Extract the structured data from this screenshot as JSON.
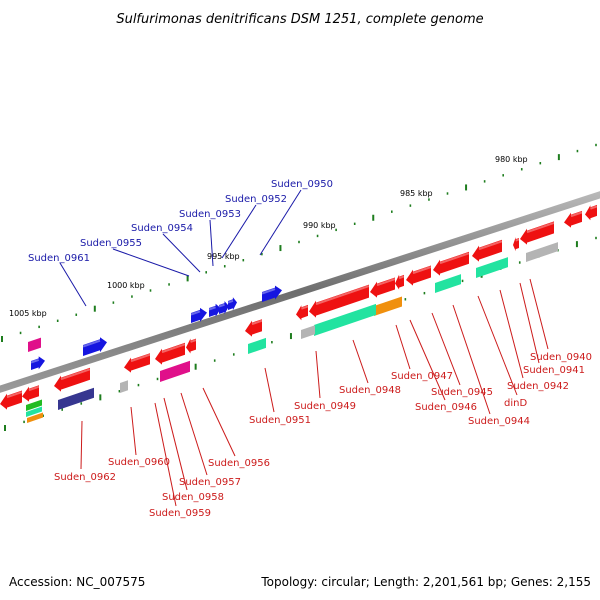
{
  "title": "Sulfurimonas denitrificans DSM 1251, complete genome",
  "footer": {
    "accession": "Accession: NC_007575",
    "summary": "Topology: circular; Length: 2,201,561 bp; Genes: 2,155"
  },
  "colors": {
    "backbone": "#7a7a7a",
    "tick": "#1e7d1e",
    "label_forward": "#1a1aa8",
    "label_reverse": "#cc1b1b",
    "gene_red": "#ee1111",
    "gene_blue": "#1515e0",
    "gene_magenta": "#e0108a",
    "gene_teal": "#22e3a0",
    "gene_orange": "#f0900e",
    "gene_navy": "#363690",
    "gene_gray": "#b4b4b4",
    "gene_green": "#22bb22"
  },
  "scale_labels": [
    {
      "id": "kbp-980",
      "text": "980 kbp"
    },
    {
      "id": "kbp-985",
      "text": "985 kbp"
    },
    {
      "id": "kbp-990",
      "text": "990 kbp"
    },
    {
      "id": "kbp-995",
      "text": "995 kbp"
    },
    {
      "id": "kbp-1000",
      "text": "1000 kbp"
    },
    {
      "id": "kbp-1005",
      "text": "1005 kbp"
    }
  ],
  "forward_labels": [
    {
      "id": "suden-0950",
      "text": "Suden_0950"
    },
    {
      "id": "suden-0952",
      "text": "Suden_0952"
    },
    {
      "id": "suden-0953",
      "text": "Suden_0953"
    },
    {
      "id": "suden-0954",
      "text": "Suden_0954"
    },
    {
      "id": "suden-0955",
      "text": "Suden_0955"
    },
    {
      "id": "suden-0961",
      "text": "Suden_0961"
    }
  ],
  "reverse_labels": [
    {
      "id": "suden-0940",
      "text": "Suden_0940"
    },
    {
      "id": "suden-0941",
      "text": "Suden_0941"
    },
    {
      "id": "suden-0942",
      "text": "Suden_0942"
    },
    {
      "id": "dind",
      "text": "dinD"
    },
    {
      "id": "suden-0944",
      "text": "Suden_0944"
    },
    {
      "id": "suden-0945",
      "text": "Suden_0945"
    },
    {
      "id": "suden-0946",
      "text": "Suden_0946"
    },
    {
      "id": "suden-0947",
      "text": "Suden_0947"
    },
    {
      "id": "suden-0948",
      "text": "Suden_0948"
    },
    {
      "id": "suden-0949",
      "text": "Suden_0949"
    },
    {
      "id": "suden-0951",
      "text": "Suden_0951"
    },
    {
      "id": "suden-0956",
      "text": "Suden_0956"
    },
    {
      "id": "suden-0957",
      "text": "Suden_0957"
    },
    {
      "id": "suden-0958",
      "text": "Suden_0958"
    },
    {
      "id": "suden-0959",
      "text": "Suden_0959"
    },
    {
      "id": "suden-0960",
      "text": "Suden_0960"
    },
    {
      "id": "suden-0962",
      "text": "Suden_0962"
    }
  ]
}
